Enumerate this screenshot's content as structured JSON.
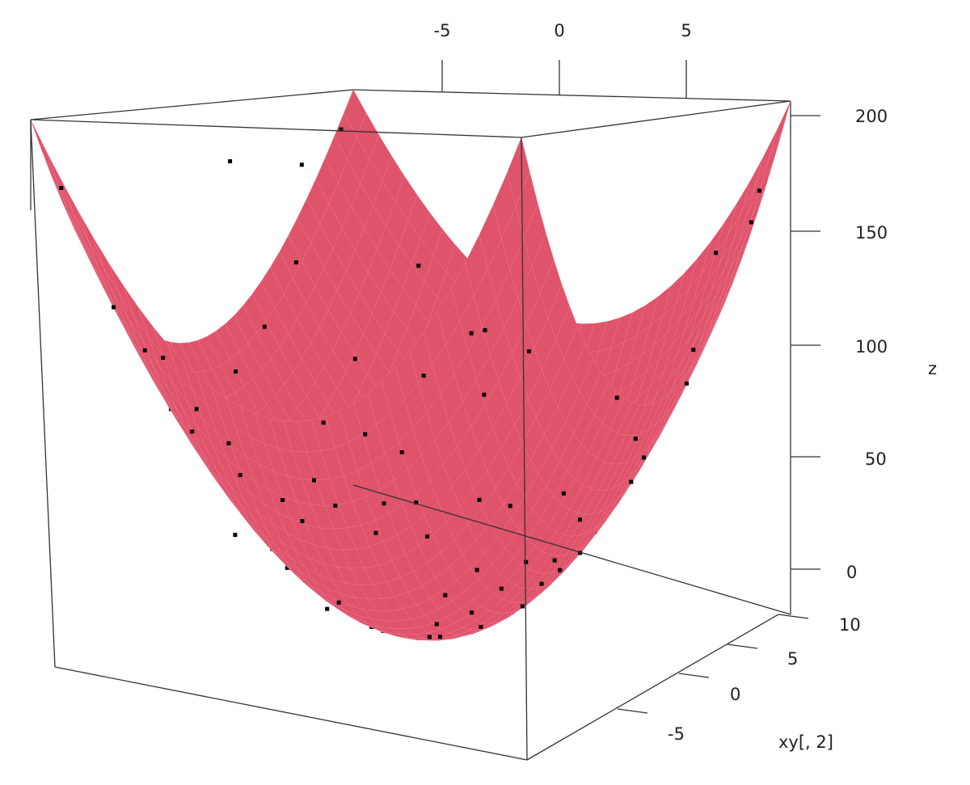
{
  "chart_data": {
    "type": "scatter",
    "surface": {
      "function": "x^2 + y^2",
      "x_range": [
        -10,
        10
      ],
      "y_range": [
        -10,
        10
      ],
      "color": "#DF536B"
    },
    "points_color": "#000000",
    "zlabel": "z",
    "ylabel": "xy[, 2]",
    "xlabel": "",
    "x_ticks": [
      "-5",
      "0",
      "5"
    ],
    "y_ticks": [
      "-5",
      "0",
      "5",
      "10"
    ],
    "z_ticks": [
      "0",
      "50",
      "100",
      "150",
      "200"
    ],
    "zlim": [
      0,
      200
    ],
    "points": [
      [
        -9.8,
        2.0,
        174
      ],
      [
        -8.6,
        4.8,
        170
      ],
      [
        -8.0,
        3.5,
        129
      ],
      [
        -7.4,
        0.5,
        108
      ],
      [
        -6.9,
        -2.2,
        96
      ],
      [
        -6.5,
        5.1,
        85
      ],
      [
        -6.1,
        -4.0,
        73
      ],
      [
        -5.8,
        1.9,
        67
      ],
      [
        -5.5,
        -1.4,
        45
      ],
      [
        -5.2,
        3.8,
        58
      ],
      [
        -4.9,
        -5.6,
        44
      ],
      [
        -4.6,
        0.8,
        38
      ],
      [
        -4.2,
        -3.2,
        26
      ],
      [
        -3.9,
        2.5,
        23
      ],
      [
        -3.6,
        -0.7,
        12
      ],
      [
        -3.3,
        4.4,
        31
      ],
      [
        -3.0,
        -6.1,
        43
      ],
      [
        -2.7,
        1.4,
        9
      ],
      [
        -2.4,
        -2.5,
        14
      ],
      [
        -2.1,
        3.0,
        11
      ],
      [
        -1.8,
        -4.3,
        18
      ],
      [
        -1.5,
        0.2,
        2
      ],
      [
        -1.2,
        5.6,
        33
      ],
      [
        -0.9,
        -1.8,
        4
      ],
      [
        -0.6,
        2.2,
        6
      ],
      [
        -0.3,
        -3.6,
        12
      ],
      [
        0.0,
        0.6,
        1
      ],
      [
        0.3,
        4.0,
        16
      ],
      [
        0.6,
        -0.9,
        2
      ],
      [
        0.9,
        1.7,
        4
      ],
      [
        1.2,
        -5.2,
        28
      ],
      [
        1.5,
        2.9,
        11
      ],
      [
        1.8,
        -2.1,
        8
      ],
      [
        2.1,
        0.4,
        5
      ],
      [
        2.4,
        6.0,
        42
      ],
      [
        2.7,
        -3.9,
        22
      ],
      [
        3.0,
        1.2,
        10
      ],
      [
        3.3,
        -1.5,
        13
      ],
      [
        3.6,
        3.4,
        25
      ],
      [
        3.9,
        -6.5,
        58
      ],
      [
        4.2,
        0.0,
        18
      ],
      [
        4.5,
        2.3,
        26
      ],
      [
        4.8,
        -4.4,
        43
      ],
      [
        5.1,
        4.9,
        50
      ],
      [
        5.4,
        -0.6,
        30
      ],
      [
        5.7,
        1.8,
        36
      ],
      [
        6.0,
        -2.8,
        44
      ],
      [
        6.3,
        5.8,
        73
      ],
      [
        6.6,
        -5.0,
        69
      ],
      [
        6.9,
        0.9,
        48
      ],
      [
        7.2,
        3.1,
        62
      ],
      [
        7.5,
        -1.3,
        58
      ],
      [
        7.8,
        6.7,
        106
      ],
      [
        8.1,
        -3.4,
        77
      ],
      [
        8.4,
        2.0,
        75
      ],
      [
        8.7,
        -6.2,
        114
      ],
      [
        9.0,
        4.2,
        99
      ],
      [
        9.3,
        -0.2,
        87
      ],
      [
        9.6,
        7.9,
        155
      ],
      [
        9.9,
        -2.7,
        106
      ],
      [
        -9.5,
        -3.0,
        100
      ],
      [
        -8.8,
        -7.1,
        128
      ],
      [
        -8.2,
        7.8,
        128
      ],
      [
        -7.7,
        -5.3,
        87
      ],
      [
        -7.1,
        6.6,
        93
      ],
      [
        -6.7,
        -8.4,
        116
      ],
      [
        -6.0,
        8.6,
        120
      ],
      [
        -5.4,
        -7.5,
        86
      ],
      [
        -4.8,
        7.2,
        75
      ],
      [
        -4.3,
        -8.9,
        98
      ],
      [
        -3.7,
        8.8,
        92
      ],
      [
        -3.1,
        -8.0,
        74
      ],
      [
        -2.5,
        7.9,
        69
      ],
      [
        -1.9,
        -9.1,
        86
      ],
      [
        -1.3,
        9.2,
        87
      ],
      [
        -0.7,
        -7.7,
        60
      ],
      [
        -0.1,
        9.6,
        92
      ],
      [
        0.5,
        -8.8,
        78
      ],
      [
        1.1,
        8.3,
        70
      ],
      [
        1.7,
        -9.4,
        91
      ],
      [
        2.3,
        7.6,
        63
      ],
      [
        2.9,
        -7.9,
        71
      ],
      [
        3.5,
        9.0,
        93
      ],
      [
        4.1,
        -8.6,
        91
      ],
      [
        4.7,
        7.0,
        71
      ],
      [
        5.3,
        -9.7,
        122
      ],
      [
        5.9,
        8.1,
        100
      ],
      [
        6.5,
        -7.4,
        97
      ],
      [
        7.1,
        9.4,
        139
      ],
      [
        7.7,
        -8.7,
        135
      ],
      [
        8.3,
        6.1,
        106
      ],
      [
        8.9,
        -7.8,
        140
      ],
      [
        9.4,
        8.8,
        166
      ],
      [
        -9.9,
        9.1,
        181
      ],
      [
        -9.2,
        -9.5,
        175
      ],
      [
        9.8,
        -9.6,
        188
      ],
      [
        -0.4,
        -9.9,
        98
      ],
      [
        0.2,
        9.9,
        98
      ],
      [
        -9.6,
        0.3,
        92
      ],
      [
        9.7,
        0.1,
        94
      ]
    ]
  }
}
